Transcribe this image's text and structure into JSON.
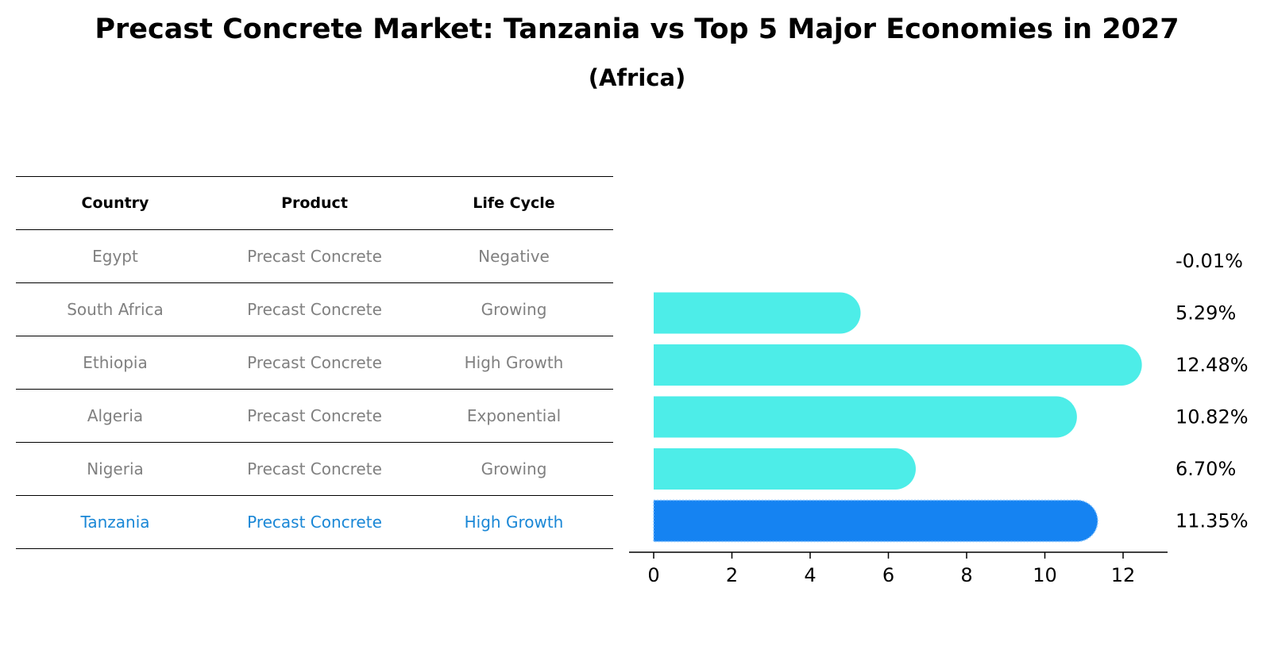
{
  "title": "Precast Concrete Market: Tanzania vs Top 5 Major Economies in 2027",
  "subtitle": "(Africa)",
  "colors": {
    "bar": "#4dede8",
    "highlight_bar": "#1583f2",
    "highlight_text": "#1a87d6",
    "muted_text": "#808080"
  },
  "table": {
    "headers": [
      "Country",
      "Product",
      "Life Cycle"
    ],
    "rows": [
      {
        "country": "Egypt",
        "product": "Precast Concrete",
        "life_cycle": "Negative"
      },
      {
        "country": "South Africa",
        "product": "Precast Concrete",
        "life_cycle": "Growing"
      },
      {
        "country": "Ethiopia",
        "product": "Precast Concrete",
        "life_cycle": "High Growth"
      },
      {
        "country": "Algeria",
        "product": "Precast Concrete",
        "life_cycle": "Exponential"
      },
      {
        "country": "Nigeria",
        "product": "Precast Concrete",
        "life_cycle": "Growing"
      },
      {
        "country": "Tanzania",
        "product": "Precast Concrete",
        "life_cycle": "High Growth"
      }
    ]
  },
  "chart_data": {
    "type": "bar",
    "orientation": "horizontal",
    "categories": [
      "Egypt",
      "South Africa",
      "Ethiopia",
      "Algeria",
      "Nigeria",
      "Tanzania"
    ],
    "values": [
      -0.01,
      5.29,
      12.48,
      10.82,
      6.7,
      11.35
    ],
    "value_labels": [
      "-0.01%",
      "5.29%",
      "12.48%",
      "10.82%",
      "6.70%",
      "11.35%"
    ],
    "highlight": "Tanzania",
    "xticks": [
      0,
      2,
      4,
      6,
      8,
      10,
      12
    ],
    "xlim": [
      -0.65,
      13.1
    ],
    "grid": false,
    "xlabel": "",
    "ylabel": ""
  }
}
